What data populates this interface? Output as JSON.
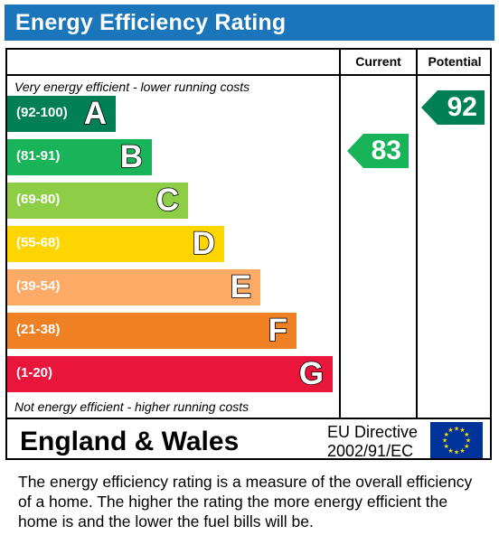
{
  "header": {
    "title": "Energy Efficiency Rating"
  },
  "columns": {
    "current": "Current",
    "potential": "Potential"
  },
  "notes": {
    "top": "Very energy efficient - lower running costs",
    "bottom": "Not energy efficient - higher running costs"
  },
  "chart_data": {
    "type": "bar",
    "categories": [
      "A",
      "B",
      "C",
      "D",
      "E",
      "F",
      "G"
    ],
    "ranges": [
      "(92-100)",
      "(81-91)",
      "(69-80)",
      "(55-68)",
      "(39-54)",
      "(21-38)",
      "(1-20)"
    ],
    "colors": [
      "#008054",
      "#19b459",
      "#8dce46",
      "#ffd500",
      "#fcaa65",
      "#ef8023",
      "#e9153b"
    ],
    "current": {
      "value": 83,
      "color": "#19b459"
    },
    "potential": {
      "value": 92,
      "color": "#008054"
    }
  },
  "footer": {
    "region": "England & Wales",
    "directive_line1": "EU Directive",
    "directive_line2": "2002/91/EC",
    "flag_icon": "eu-flag-icon"
  },
  "description": "The energy efficiency rating is a measure of the overall efficiency of a home.  The higher the rating the more energy efficient the home is and the lower the fuel bills will be."
}
